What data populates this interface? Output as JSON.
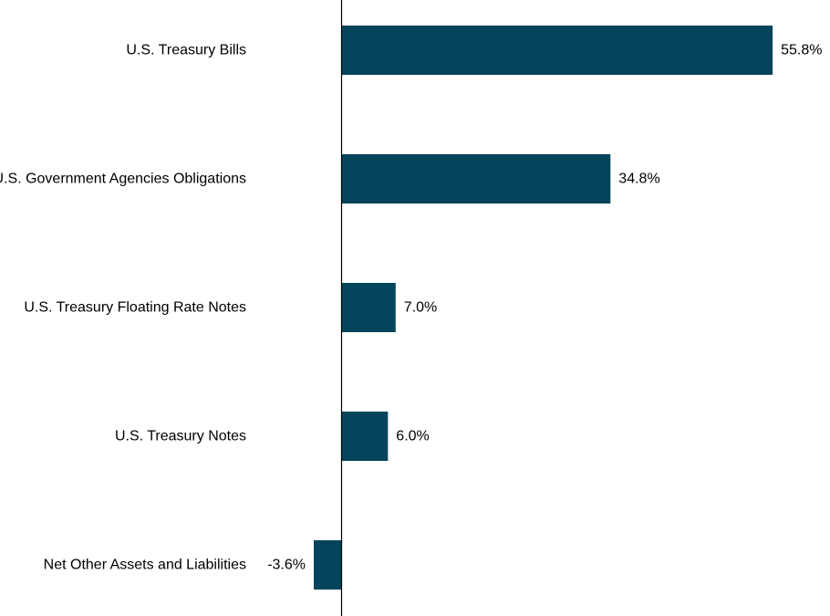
{
  "chart_data": {
    "type": "bar",
    "orientation": "horizontal",
    "categories": [
      "U.S. Treasury Bills",
      "U.S. Government Agencies Obligations",
      "U.S. Treasury Floating Rate Notes",
      "U.S. Treasury Notes",
      "Net Other Assets and Liabilities"
    ],
    "values": [
      55.8,
      34.8,
      7.0,
      6.0,
      -3.6
    ],
    "value_labels": [
      "55.8%",
      "34.8%",
      "7.0%",
      "6.0%",
      "-3.6%"
    ],
    "value_unit": "%",
    "grid": false,
    "bar_color": "#05455b",
    "axis_color": "#000000"
  }
}
